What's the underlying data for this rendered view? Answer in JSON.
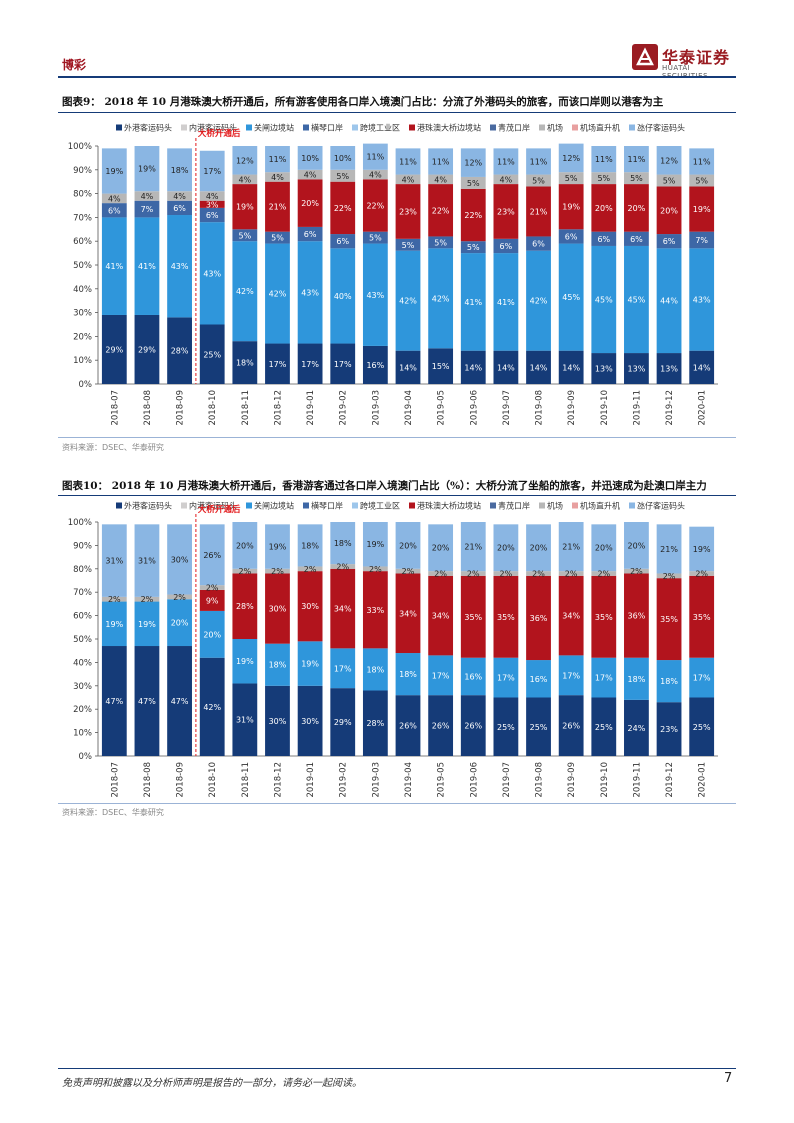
{
  "header": {
    "section": "博彩",
    "logo_cn": "华泰证券",
    "logo_en": "HUATAI SECURITIES"
  },
  "colors": {
    "series": [
      "#153b78",
      "#d0cece",
      "#2f96db",
      "#3d67a6",
      "#9dc6eb",
      "#b2141d",
      "#4a6aa0",
      "#b7b7b7",
      "#e8a0a0",
      "#8ab6e3"
    ],
    "marker": "#e31a1c",
    "label_light": "#ffffff",
    "label_dark": "#222222"
  },
  "legend_labels": [
    "外港客运码头",
    "内港客运码头",
    "关闸边境站",
    "横琴口岸",
    "跨境工业区",
    "港珠澳大桥边境站",
    "青茂口岸",
    "机场",
    "机场直升机",
    "氹仔客运码头"
  ],
  "figures": [
    {
      "title": "图表9： 2018 年 10 月港珠澳大桥开通后，所有游客使用各口岸入境澳门占比：分流了外港码头的旅客，而该口岸则以港客为主",
      "source": "资料来源：DSEC、华泰研究"
    },
    {
      "title": "图表10： 2018 年 10 月港珠澳大桥开通后，香港游客通过各口岸入境澳门占比（%）：大桥分流了坐船的旅客，并迅速成为赴澳口岸主力",
      "source": "资料来源：DSEC、华泰研究"
    }
  ],
  "chart_data": [
    {
      "type": "bar",
      "stacked": true,
      "categories": [
        "2018-07",
        "2018-08",
        "2018-09",
        "2018-10",
        "2018-11",
        "2018-12",
        "2019-01",
        "2019-02",
        "2019-03",
        "2019-04",
        "2019-05",
        "2019-06",
        "2019-07",
        "2019-08",
        "2019-09",
        "2019-10",
        "2019-11",
        "2019-12",
        "2020-01"
      ],
      "ylim": [
        0,
        100
      ],
      "yticks": [
        "0%",
        "10%",
        "20%",
        "30%",
        "40%",
        "50%",
        "60%",
        "70%",
        "80%",
        "90%",
        "100%"
      ],
      "marker": {
        "label": "大桥开通后",
        "after_index": 2
      },
      "series": [
        {
          "name": "外港客运码头",
          "values": [
            29,
            29,
            28,
            25,
            18,
            17,
            17,
            17,
            16,
            14,
            15,
            14,
            14,
            14,
            14,
            13,
            13,
            13,
            14
          ]
        },
        {
          "name": "内港客运码头",
          "values": [
            0,
            0,
            0,
            0,
            0,
            0,
            0,
            0,
            0,
            0,
            0,
            0,
            0,
            0,
            0,
            0,
            0,
            0,
            0
          ]
        },
        {
          "name": "关闸边境站",
          "values": [
            41,
            41,
            43,
            43,
            42,
            42,
            43,
            40,
            43,
            42,
            42,
            41,
            41,
            42,
            45,
            45,
            45,
            44,
            43
          ]
        },
        {
          "name": "横琴口岸",
          "values": [
            6,
            7,
            6,
            6,
            5,
            5,
            6,
            6,
            5,
            5,
            5,
            5,
            6,
            6,
            6,
            6,
            6,
            6,
            7
          ]
        },
        {
          "name": "跨境工业区",
          "values": [
            0,
            0,
            0,
            0,
            0,
            0,
            0,
            0,
            0,
            0,
            0,
            0,
            0,
            0,
            0,
            0,
            0,
            0,
            0
          ]
        },
        {
          "name": "港珠澳大桥边境站",
          "values": [
            0,
            0,
            0,
            3,
            19,
            21,
            20,
            22,
            22,
            23,
            22,
            22,
            23,
            21,
            19,
            20,
            20,
            20,
            19
          ]
        },
        {
          "name": "青茂口岸",
          "values": [
            0,
            0,
            0,
            0,
            0,
            0,
            0,
            0,
            0,
            0,
            0,
            0,
            0,
            0,
            0,
            0,
            0,
            0,
            0
          ]
        },
        {
          "name": "机场",
          "values": [
            4,
            4,
            4,
            4,
            4,
            4,
            4,
            5,
            4,
            4,
            4,
            5,
            4,
            5,
            5,
            5,
            5,
            5,
            5
          ]
        },
        {
          "name": "机场直升机",
          "values": [
            0,
            0,
            0,
            0,
            0,
            0,
            0,
            0,
            0,
            0,
            0,
            0,
            0,
            0,
            0,
            0,
            0,
            0,
            0
          ]
        },
        {
          "name": "氹仔客运码头",
          "values": [
            19,
            19,
            18,
            17,
            12,
            11,
            10,
            10,
            11,
            11,
            11,
            12,
            11,
            11,
            12,
            11,
            11,
            12,
            11
          ]
        }
      ],
      "labels": {
        "外港客运码头": [
          "29%",
          "29%",
          "28%",
          "25%",
          "18%",
          "17%",
          "17%",
          "17%",
          "16%",
          "14%",
          "15%",
          "14%",
          "14%",
          "14%",
          "14%",
          "13%",
          "13%",
          "13%",
          "14%"
        ],
        "关闸边境站": [
          "41%",
          "41%",
          "43%",
          "43%",
          "42%",
          "42%",
          "43%",
          "40%",
          "43%",
          "42%",
          "42%",
          "41%",
          "41%",
          "42%",
          "45%",
          "45%",
          "45%",
          "44%",
          "43%"
        ],
        "横琴口岸": [
          "6%",
          "7%",
          "6%",
          "6%",
          "5%",
          "5%",
          "6%",
          "6%",
          "5%",
          "5%",
          "5%",
          "5%",
          "6%",
          "6%",
          "6%",
          "6%",
          "6%",
          "6%",
          "7%"
        ],
        "港珠澳大桥边境站": [
          "",
          "",
          "",
          "3%",
          "19%",
          "21%",
          "20%",
          "22%",
          "22%",
          "23%",
          "22%",
          "22%",
          "23%",
          "21%",
          "19%",
          "20%",
          "20%",
          "20%",
          "19%"
        ],
        "机场": [
          "4%",
          "4%",
          "4%",
          "4%",
          "4%",
          "4%",
          "4%",
          "5%",
          "4%",
          "4%",
          "4%",
          "5%",
          "4%",
          "5%",
          "5%",
          "5%",
          "5%",
          "5%",
          "5%"
        ],
        "氹仔客运码头": [
          "19%",
          "19%",
          "18%",
          "17%",
          "12%",
          "11%",
          "10%",
          "10%",
          "11%",
          "11%",
          "11%",
          "12%",
          "11%",
          "11%",
          "12%",
          "11%",
          "11%",
          "12%",
          "11%"
        ]
      }
    },
    {
      "type": "bar",
      "stacked": true,
      "categories": [
        "2018-07",
        "2018-08",
        "2018-09",
        "2018-10",
        "2018-11",
        "2018-12",
        "2019-01",
        "2019-02",
        "2019-03",
        "2019-04",
        "2019-05",
        "2019-06",
        "2019-07",
        "2019-08",
        "2019-09",
        "2019-10",
        "2019-11",
        "2019-12",
        "2020-01"
      ],
      "ylim": [
        0,
        100
      ],
      "yticks": [
        "0%",
        "10%",
        "20%",
        "30%",
        "40%",
        "50%",
        "60%",
        "70%",
        "80%",
        "90%",
        "100%"
      ],
      "marker": {
        "label": "大桥开通后",
        "after_index": 2
      },
      "series": [
        {
          "name": "外港客运码头",
          "values": [
            47,
            47,
            47,
            42,
            31,
            30,
            30,
            29,
            28,
            26,
            26,
            26,
            25,
            25,
            26,
            25,
            24,
            23,
            25
          ]
        },
        {
          "name": "内港客运码头",
          "values": [
            0,
            0,
            0,
            0,
            0,
            0,
            0,
            0,
            0,
            0,
            0,
            0,
            0,
            0,
            0,
            0,
            0,
            0,
            0
          ]
        },
        {
          "name": "关闸边境站",
          "values": [
            19,
            19,
            20,
            20,
            19,
            18,
            19,
            17,
            18,
            18,
            17,
            16,
            17,
            16,
            17,
            17,
            18,
            18,
            17
          ]
        },
        {
          "name": "横琴口岸",
          "values": [
            0,
            0,
            0,
            0,
            0,
            0,
            0,
            0,
            0,
            0,
            0,
            0,
            0,
            0,
            0,
            0,
            0,
            0,
            0
          ]
        },
        {
          "name": "跨境工业区",
          "values": [
            0,
            0,
            0,
            0,
            0,
            0,
            0,
            0,
            0,
            0,
            0,
            0,
            0,
            0,
            0,
            0,
            0,
            0,
            0
          ]
        },
        {
          "name": "港珠澳大桥边境站",
          "values": [
            0,
            0,
            0,
            9,
            28,
            30,
            30,
            34,
            33,
            34,
            34,
            35,
            35,
            36,
            34,
            35,
            36,
            35,
            35
          ]
        },
        {
          "name": "青茂口岸",
          "values": [
            0,
            0,
            0,
            0,
            0,
            0,
            0,
            0,
            0,
            0,
            0,
            0,
            0,
            0,
            0,
            0,
            0,
            0,
            0
          ]
        },
        {
          "name": "机场",
          "values": [
            2,
            2,
            2,
            2,
            2,
            2,
            2,
            2,
            2,
            2,
            2,
            2,
            2,
            2,
            2,
            2,
            2,
            2,
            2
          ]
        },
        {
          "name": "机场直升机",
          "values": [
            0,
            0,
            0,
            0,
            0,
            0,
            0,
            0,
            0,
            0,
            0,
            0,
            0,
            0,
            0,
            0,
            0,
            0,
            0
          ]
        },
        {
          "name": "氹仔客运码头",
          "values": [
            31,
            31,
            30,
            26,
            20,
            19,
            18,
            18,
            19,
            20,
            20,
            21,
            20,
            20,
            21,
            20,
            20,
            21,
            19
          ]
        }
      ],
      "labels": {
        "外港客运码头": [
          "47%",
          "47%",
          "47%",
          "42%",
          "31%",
          "30%",
          "30%",
          "29%",
          "28%",
          "26%",
          "26%",
          "26%",
          "25%",
          "25%",
          "26%",
          "25%",
          "24%",
          "23%",
          "25%"
        ],
        "关闸边境站": [
          "19%",
          "19%",
          "20%",
          "20%",
          "19%",
          "18%",
          "19%",
          "17%",
          "18%",
          "18%",
          "17%",
          "16%",
          "17%",
          "16%",
          "17%",
          "17%",
          "18%",
          "18%",
          "17%"
        ],
        "港珠澳大桥边境站": [
          "",
          "",
          "",
          "9%",
          "28%",
          "30%",
          "30%",
          "34%",
          "33%",
          "34%",
          "34%",
          "35%",
          "35%",
          "36%",
          "34%",
          "35%",
          "36%",
          "35%",
          "35%"
        ],
        "机场": [
          "2%",
          "2%",
          "2%",
          "2%",
          "2%",
          "2%",
          "2%",
          "2%",
          "2%",
          "2%",
          "2%",
          "2%",
          "2%",
          "2%",
          "2%",
          "2%",
          "2%",
          "2%",
          "2%"
        ],
        "氹仔客运码头": [
          "31%",
          "31%",
          "30%",
          "26%",
          "20%",
          "19%",
          "18%",
          "18%",
          "19%",
          "20%",
          "20%",
          "21%",
          "20%",
          "20%",
          "21%",
          "20%",
          "20%",
          "21%",
          "19%"
        ]
      }
    }
  ],
  "footer": {
    "disclaimer": "免责声明和披露以及分析师声明是报告的一部分，请务必一起阅读。",
    "page": "7"
  }
}
